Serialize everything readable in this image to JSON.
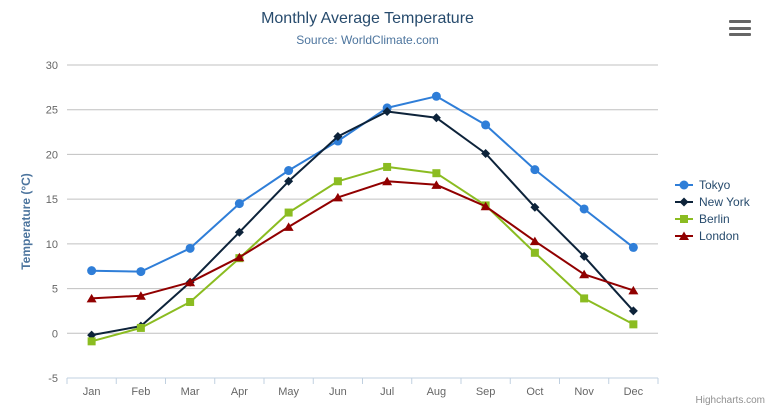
{
  "chart_data": {
    "type": "line",
    "title": "Monthly Average Temperature",
    "subtitle": "Source: WorldClimate.com",
    "categories": [
      "Jan",
      "Feb",
      "Mar",
      "Apr",
      "May",
      "Jun",
      "Jul",
      "Aug",
      "Sep",
      "Oct",
      "Nov",
      "Dec"
    ],
    "xlabel": "",
    "ylabel": "Temperature (°C)",
    "ylim": [
      -5,
      30
    ],
    "ytick_step": 5,
    "grid": true,
    "legend_position": "right",
    "series": [
      {
        "name": "Tokyo",
        "color": "#2f7ed8",
        "marker": "circle",
        "values": [
          7.0,
          6.9,
          9.5,
          14.5,
          18.2,
          21.5,
          25.2,
          26.5,
          23.3,
          18.3,
          13.9,
          9.6
        ]
      },
      {
        "name": "New York",
        "color": "#0d233a",
        "marker": "diamond",
        "values": [
          -0.2,
          0.8,
          5.7,
          11.3,
          17.0,
          22.0,
          24.8,
          24.1,
          20.1,
          14.1,
          8.6,
          2.5
        ]
      },
      {
        "name": "Berlin",
        "color": "#8bbc21",
        "marker": "square",
        "values": [
          -0.9,
          0.6,
          3.5,
          8.4,
          13.5,
          17.0,
          18.6,
          17.9,
          14.3,
          9.0,
          3.9,
          1.0
        ]
      },
      {
        "name": "London",
        "color": "#910000",
        "marker": "triangle",
        "values": [
          3.9,
          4.2,
          5.7,
          8.5,
          11.9,
          15.2,
          17.0,
          16.6,
          14.2,
          10.3,
          6.6,
          4.8
        ]
      }
    ],
    "colors": {
      "grid_line": "#c0c0c0",
      "axis_line": "#c0d0e0",
      "axis_label": "#666666",
      "axis_title": "#4d759e",
      "title": "#274b6d",
      "legend_text": "#274b6d",
      "credits_text": "#909090"
    },
    "credits": "Highcharts.com"
  },
  "toolbar": {
    "export_menu_icon": "hamburger-icon"
  }
}
